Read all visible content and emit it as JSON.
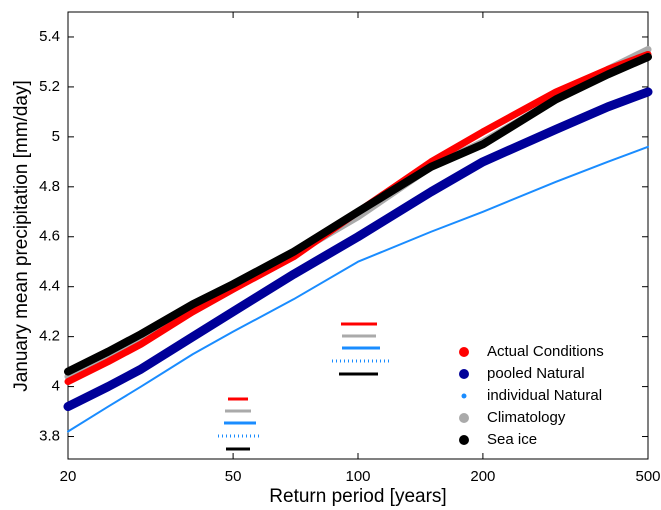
{
  "chart_data": {
    "type": "line",
    "xlabel": "Return period [years]",
    "ylabel": "January mean precipitation [mm/day]",
    "x": [
      20,
      25,
      30,
      40,
      50,
      70,
      100,
      150,
      200,
      300,
      400,
      500
    ],
    "xscale": "log",
    "xlim": [
      20,
      500
    ],
    "xticks": [
      20,
      50,
      100,
      200,
      500
    ],
    "ylim": [
      3.71,
      5.5
    ],
    "yticks": [
      3.8,
      4,
      4.2,
      4.4,
      4.6,
      4.8,
      5,
      5.2,
      5.4
    ],
    "legend": "lower right",
    "series": [
      {
        "name": "Actual Conditions",
        "color": "#ff0000",
        "values": [
          4.02,
          4.1,
          4.17,
          4.3,
          4.39,
          4.52,
          4.7,
          4.9,
          5.02,
          5.18,
          5.27,
          5.33
        ]
      },
      {
        "name": "pooled Natural",
        "color": "#000099",
        "values": [
          3.92,
          4.0,
          4.07,
          4.2,
          4.3,
          4.45,
          4.6,
          4.78,
          4.9,
          5.03,
          5.12,
          5.18
        ]
      },
      {
        "name": "individual Natural",
        "color": "#1a8cff",
        "values": [
          3.82,
          3.92,
          4.0,
          4.13,
          4.22,
          4.35,
          4.5,
          4.62,
          4.7,
          4.82,
          4.9,
          4.96
        ]
      },
      {
        "name": "Climatology",
        "color": "#aaaaaa",
        "values": [
          4.04,
          4.12,
          4.19,
          4.3,
          4.39,
          4.53,
          4.68,
          4.88,
          4.98,
          5.15,
          5.27,
          5.35
        ]
      },
      {
        "name": "Sea ice",
        "color": "#000000",
        "values": [
          4.06,
          4.14,
          4.21,
          4.33,
          4.41,
          4.54,
          4.7,
          4.88,
          4.97,
          5.15,
          5.25,
          5.32
        ]
      }
    ]
  }
}
